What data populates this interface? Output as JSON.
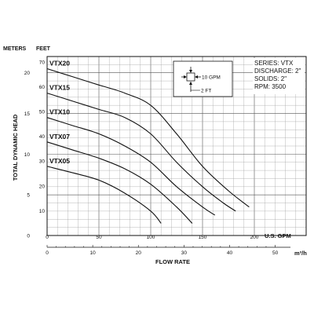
{
  "chart_data": {
    "type": "line",
    "series": [
      {
        "name": "VTX20",
        "x": [
          0,
          25,
          50,
          75,
          100,
          125,
          150,
          175,
          195
        ],
        "y": [
          20.5,
          19.5,
          18.5,
          17.5,
          16,
          12.5,
          8.5,
          5.5,
          3.5
        ]
      },
      {
        "name": "VTX15",
        "x": [
          0,
          25,
          50,
          75,
          100,
          125,
          150,
          170,
          182
        ],
        "y": [
          17.5,
          16.5,
          15.5,
          14.5,
          12.5,
          9,
          6,
          4,
          3
        ]
      },
      {
        "name": "VTX10",
        "x": [
          0,
          25,
          50,
          75,
          100,
          125,
          150,
          162
        ],
        "y": [
          14.5,
          13.5,
          12.5,
          11,
          9,
          6,
          3.5,
          2.5
        ]
      },
      {
        "name": "VTX07",
        "x": [
          0,
          25,
          50,
          75,
          100,
          125,
          140
        ],
        "y": [
          11.5,
          10.5,
          9.5,
          8.2,
          6.3,
          3.5,
          1.5
        ]
      },
      {
        "name": "VTX05",
        "x": [
          0,
          25,
          50,
          75,
          100,
          110
        ],
        "y": [
          8.5,
          7.7,
          6.8,
          5.2,
          3,
          1.5
        ]
      }
    ],
    "xlim": [
      0,
      250
    ],
    "ylim": [
      0,
      22
    ],
    "x_ticks": [
      "0",
      "50",
      "100",
      "150",
      "200"
    ],
    "x_unit": "U.S. GPM",
    "x2_ticks": [
      "0",
      "10",
      "20",
      "30",
      "40",
      "50"
    ],
    "x2_unit": "m³/h",
    "xlabel": "FLOW RATE",
    "y_ticks": [
      "0",
      "5",
      "10",
      "15",
      "20"
    ],
    "y_unit": "METERS",
    "y2_ticks": [
      "10",
      "20",
      "30",
      "40",
      "50",
      "60",
      "70"
    ],
    "y2_unit": "FEET",
    "ylabel": "TOTAL DYNAMIC HEAD",
    "grid": true
  },
  "legend_box": {
    "flow_label": "10 GPM",
    "head_label": "2 FT"
  },
  "specs": [
    "SERIES: VTX",
    "DISCHARGE: 2\"",
    "SOLIDS: 2\"",
    "RPM: 3500"
  ]
}
